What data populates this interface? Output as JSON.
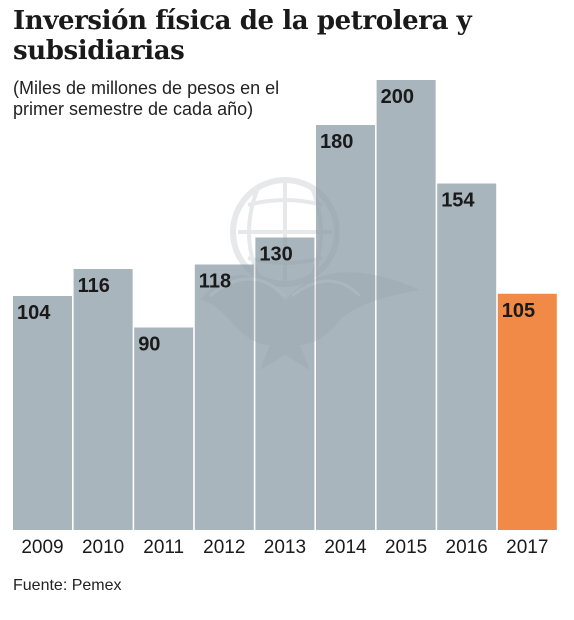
{
  "title": "Inversión física de la petrolera y subsidiarias",
  "subtitle": "(Miles de millones de pesos en el primer semestre de cada año)",
  "source": "Fuente: Pemex",
  "colors": {
    "bar": "#a8b5bc",
    "highlight": "#f18a46",
    "text": "#1a1a1a"
  },
  "chart_data": {
    "type": "bar",
    "categories": [
      "2009",
      "2010",
      "2011",
      "2012",
      "2013",
      "2014",
      "2015",
      "2016",
      "2017"
    ],
    "values": [
      104,
      116,
      90,
      118,
      130,
      180,
      200,
      154,
      105
    ],
    "data_labels": [
      "104",
      "116",
      "90",
      "118",
      "130",
      "180",
      "200",
      "154",
      "105"
    ],
    "highlight_category": "2017",
    "title": "Inversión física de la petrolera y subsidiarias",
    "subtitle": "(Miles de millones de pesos en el primer semestre de cada año)",
    "ylim": [
      0,
      200
    ],
    "grid": false,
    "legend": "none"
  }
}
